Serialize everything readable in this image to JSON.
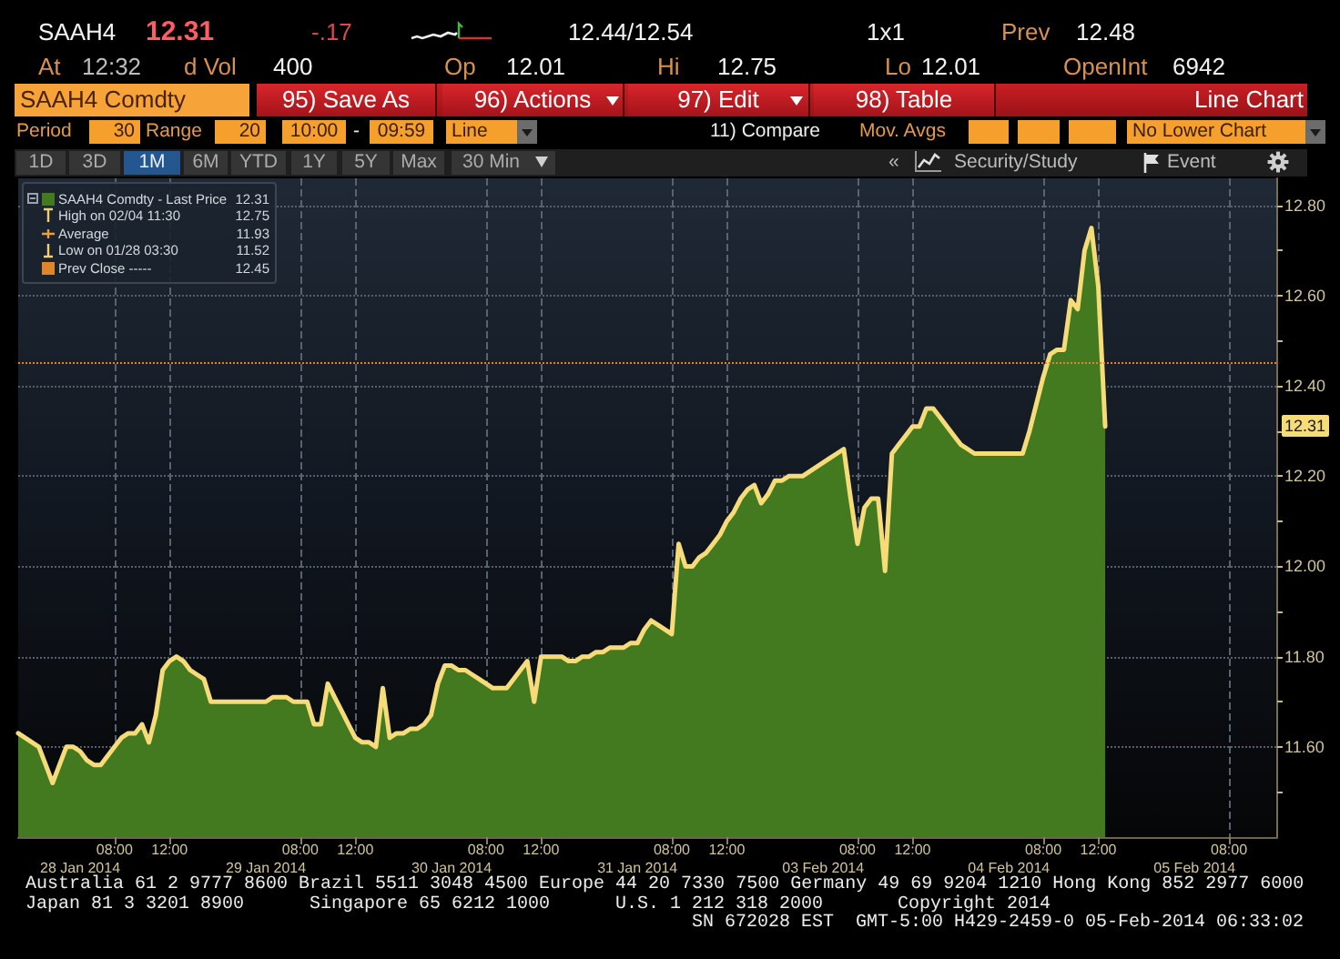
{
  "chart_data": {
    "type": "area",
    "categories": [
      null,
      null,
      null,
      null,
      null,
      null,
      null,
      null,
      null,
      "28 Jan 2014",
      null,
      null,
      null,
      null,
      "08:00",
      null,
      null,
      null,
      null,
      null,
      null,
      null,
      "12:00",
      null,
      null,
      null,
      null,
      null,
      null,
      null,
      null,
      null,
      null,
      null,
      null,
      null,
      "29 Jan 2014",
      null,
      null,
      null,
      null,
      "08:00",
      null,
      null,
      null,
      null,
      null,
      null,
      null,
      "12:00",
      null,
      null,
      null,
      null,
      null,
      null,
      null,
      null,
      null,
      null,
      null,
      null,
      null,
      "30 Jan 2014",
      null,
      null,
      null,
      null,
      "08:00",
      null,
      null,
      null,
      null,
      null,
      null,
      null,
      "12:00",
      null,
      null,
      null,
      null,
      null,
      null,
      null,
      null,
      null,
      null,
      null,
      null,
      null,
      "31 Jan 2014",
      null,
      null,
      null,
      null,
      "08:00",
      null,
      null,
      null,
      null,
      null,
      null,
      null,
      "12:00",
      null,
      null,
      null,
      null,
      null,
      null,
      null,
      null,
      null,
      null,
      null,
      null,
      null,
      "03 Feb 2014",
      null,
      null,
      null,
      null,
      "08:00",
      null,
      null,
      null,
      null,
      null,
      null,
      null,
      "12:00",
      null,
      null,
      null,
      null,
      null,
      null,
      null,
      null,
      null,
      null,
      null,
      null,
      null,
      "04 Feb 2014",
      null,
      null,
      null,
      null,
      "08:00",
      null,
      null,
      null,
      null,
      null,
      null,
      null,
      "12:00",
      null,
      null,
      null,
      null,
      null,
      null,
      null,
      null,
      null,
      null,
      null,
      null,
      null,
      "05 Feb 2014",
      null,
      null,
      null,
      null,
      "08:00",
      null,
      null,
      null,
      null,
      null,
      null,
      null
    ],
    "series": [
      {
        "name": "SAAH4 Comdty - Last Price",
        "color": "#437a1f",
        "values": [
          11.63,
          11.62,
          11.61,
          11.6,
          11.56,
          11.52,
          11.56,
          11.6,
          11.6,
          11.59,
          11.57,
          11.56,
          11.56,
          11.58,
          11.6,
          11.62,
          11.63,
          11.63,
          11.65,
          11.61,
          11.67,
          11.77,
          11.79,
          11.8,
          11.79,
          11.77,
          11.76,
          11.75,
          11.7,
          11.7,
          11.7,
          11.7,
          11.7,
          11.7,
          11.7,
          11.7,
          11.7,
          11.71,
          11.71,
          11.71,
          11.7,
          11.7,
          11.7,
          11.65,
          11.65,
          11.74,
          11.71,
          11.68,
          11.65,
          11.62,
          11.61,
          11.61,
          11.6,
          11.73,
          11.62,
          11.63,
          11.63,
          11.64,
          11.64,
          11.65,
          11.67,
          11.74,
          11.78,
          11.78,
          11.77,
          11.77,
          11.76,
          11.75,
          11.74,
          11.73,
          11.73,
          11.73,
          11.75,
          11.77,
          11.79,
          11.7,
          11.8,
          11.8,
          11.8,
          11.8,
          11.79,
          11.79,
          11.8,
          11.8,
          11.81,
          11.81,
          11.82,
          11.82,
          11.82,
          11.83,
          11.83,
          11.86,
          11.88,
          11.87,
          11.86,
          11.85,
          12.05,
          12,
          12,
          12.02,
          12.03,
          12.05,
          12.07,
          12.1,
          12.12,
          12.15,
          12.17,
          12.18,
          12.14,
          12.16,
          12.19,
          12.19,
          12.2,
          12.2,
          12.2,
          12.21,
          12.22,
          12.23,
          12.24,
          12.25,
          12.26,
          12.15,
          12.05,
          12.13,
          12.15,
          12.15,
          11.99,
          12.25,
          12.27,
          12.29,
          12.31,
          12.31,
          12.35,
          12.35,
          12.33,
          12.31,
          12.29,
          12.27,
          12.26,
          12.25,
          12.25,
          12.25,
          12.25,
          12.25,
          12.25,
          12.25,
          12.25,
          12.3,
          12.36,
          12.42,
          12.47,
          12.48,
          12.48,
          12.59,
          12.57,
          12.7,
          12.75,
          12.62,
          12.31,
          null,
          null,
          null,
          null,
          null,
          null,
          null,
          null,
          null,
          null,
          null,
          null,
          null,
          null,
          null,
          null,
          null,
          null,
          null,
          null,
          null,
          null,
          null,
          null,
          null
        ]
      }
    ],
    "ylim": [
      11.4,
      12.86
    ],
    "yticks": [
      {
        "value": 11.5,
        "label": null
      },
      {
        "value": 11.6,
        "label": "11.60"
      },
      {
        "value": 11.7,
        "label": null
      },
      {
        "value": 11.8,
        "label": "11.80"
      },
      {
        "value": 11.9,
        "label": null
      },
      {
        "value": 12,
        "label": "12.00"
      },
      {
        "value": 12.1,
        "label": null
      },
      {
        "value": 12.2,
        "label": "12.20"
      },
      {
        "value": 12.3,
        "label": null
      },
      {
        "value": 12.4,
        "label": "12.40"
      },
      {
        "value": 12.5,
        "label": null
      },
      {
        "value": 12.6,
        "label": "12.60"
      },
      {
        "value": 12.7,
        "label": null
      },
      {
        "value": 12.8,
        "label": "12.80"
      }
    ],
    "grid": true,
    "legend": "top left",
    "ref_lines": [
      {
        "axis": "y",
        "value": 12.45,
        "label": "Prev Close -----",
        "color": "#e0862a",
        "line_style": "dotted"
      }
    ],
    "annotations": [
      "SAAH4",
      "12.31",
      "-.17",
      "12.44/12.54",
      "1x1",
      "Prev",
      "12.48",
      "At",
      "12:32",
      "d Vol",
      "400",
      "Op",
      "12.01",
      "Hi",
      "12.75",
      "Lo",
      "12.01",
      "OpenInt",
      "6942",
      "SAAH4 Comdty",
      "95) Save As",
      "96) Actions",
      "97) Edit",
      "98) Table",
      "Line Chart",
      "Period",
      "30",
      "Range",
      "20",
      "10:00",
      "-",
      "09:59",
      "Line",
      "11) Compare",
      "Mov. Avgs",
      "No Lower Chart",
      "1D",
      "3D",
      "1M",
      "6M",
      "YTD",
      "1Y",
      "5Y",
      "Max",
      "30 Min",
      "«",
      "Security/Study",
      "Event",
      "High on 02/04 11:30",
      "12.75",
      "Average",
      "11.93",
      "Low on 01/28 03:30",
      "11.52",
      "Australia 61 2 9777 8600 Brazil 5511 3048 4500 Europe 44 20 7330 7500 Germany 49 69 9204 1210 Hong Kong 852 2977 6000",
      "Japan 81 3 3201 8900",
      "Singapore 65 6212 1000",
      "U.S. 1 212 318 2000",
      "Copyright 2014",
      "SN 672028 EST  GMT-5:00 H429-2459-0 05-Feb-2014 06:33:02",
      "12.31",
      "12.45",
      {
        "text": "12.31",
        "y": 12.31
      }
    ]
  }
}
